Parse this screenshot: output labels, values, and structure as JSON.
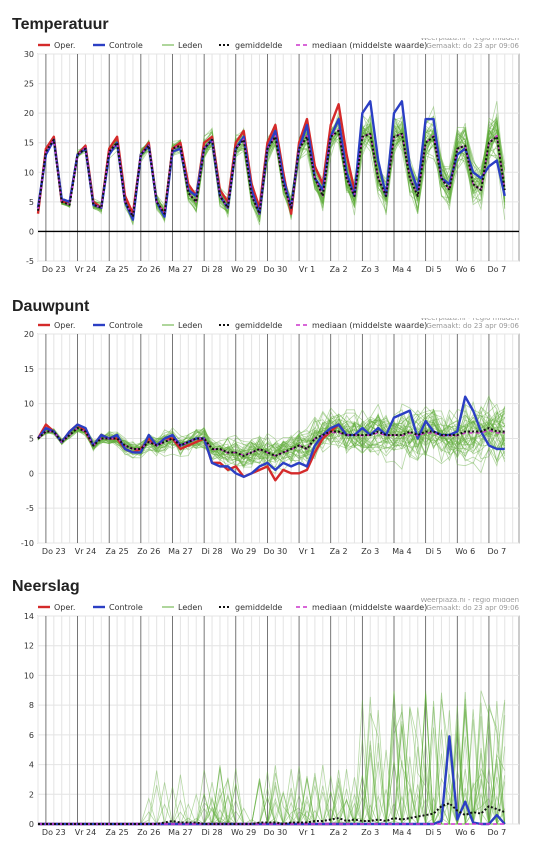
{
  "legend": {
    "oper": "Oper.",
    "controle": "Controle",
    "leden": "Leden",
    "gemiddelde": "gemiddelde",
    "mediaan": "mediaan (middelste waarde)"
  },
  "source": {
    "line1": "Weerplaza.nl - regio midden",
    "line2": "Gemaakt: do 23 apr 09:06"
  },
  "colors": {
    "oper": "#d42a2a",
    "controle": "#2b3fc4",
    "leden": "#5fae3a",
    "gemiddelde": "#111111",
    "mediaan": "#cc33cc"
  },
  "chart_data": [
    {
      "type": "line",
      "title": "Temperatuur",
      "ylim": [
        -5,
        30
      ],
      "yticks": [
        -5,
        0,
        5,
        10,
        15,
        20,
        25,
        30
      ],
      "zero_line": true,
      "day_labels": [
        "Do 23",
        "Vr 24",
        "Za 25",
        "Zo 26",
        "Ma 27",
        "Di 28",
        "Wo 29",
        "Do 30",
        "Vr 1",
        "Za 2",
        "Zo 3",
        "Ma 4",
        "Di 5",
        "Wo 6",
        "Do 7"
      ],
      "oper": [
        3,
        14,
        16,
        5,
        5,
        13,
        14.5,
        5,
        4,
        14,
        16,
        6,
        3,
        13,
        15,
        5,
        3,
        14,
        15,
        8,
        6,
        15,
        16,
        7,
        5,
        15,
        17,
        8,
        4,
        15,
        18,
        10,
        3,
        15,
        19,
        11,
        8,
        18,
        21.5,
        13,
        7
      ],
      "controle": [
        4,
        13,
        15.5,
        5.5,
        5,
        13,
        14,
        4.5,
        4,
        13,
        15,
        5,
        2,
        13,
        14.5,
        5,
        2.5,
        13.5,
        14,
        7,
        6,
        14,
        15.5,
        6,
        4,
        14,
        16,
        7,
        3,
        14,
        17,
        9,
        4,
        14,
        18,
        9,
        7,
        16,
        19,
        10,
        6,
        20,
        22,
        12,
        6,
        20,
        22,
        11,
        7,
        19,
        19,
        9,
        8,
        13,
        14,
        10,
        9,
        11,
        12,
        6
      ],
      "gemiddelde": [
        3.5,
        13.5,
        15.5,
        5,
        4.5,
        13,
        14,
        4.5,
        4,
        13.5,
        15,
        5,
        2.5,
        13,
        14.5,
        5,
        3,
        14,
        14.5,
        6.5,
        5,
        14,
        15.5,
        6,
        4,
        14,
        15.5,
        6,
        3,
        14,
        16,
        8,
        4,
        14,
        16,
        9,
        6,
        16,
        17,
        9,
        6,
        16,
        16.5,
        9,
        6,
        16,
        16.5,
        9,
        6,
        15,
        16,
        9,
        7,
        14,
        14.5,
        8,
        7,
        15,
        16,
        7
      ],
      "mediaan": [
        3.5,
        13.5,
        15.5,
        5,
        4.5,
        13,
        14.2,
        4.5,
        4,
        13.5,
        15,
        5,
        2.6,
        13,
        14.5,
        5,
        3,
        14,
        14.6,
        6.5,
        5,
        14,
        15.6,
        6,
        4,
        14,
        15.6,
        6.2,
        3,
        14,
        16.2,
        8,
        4,
        14,
        16.2,
        9,
        6,
        16,
        17.2,
        9,
        6,
        16,
        16.6,
        9,
        6,
        16,
        16.6,
        9.2,
        6,
        15,
        16.2,
        9,
        7,
        14,
        14.6,
        8,
        7,
        15,
        16.2,
        7
      ]
    },
    {
      "type": "line",
      "title": "Dauwpunt",
      "ylim": [
        -10,
        20
      ],
      "yticks": [
        -10,
        -5,
        0,
        5,
        10,
        15,
        20
      ],
      "zero_line": false,
      "day_labels": [
        "Do 23",
        "Vr 24",
        "Za 25",
        "Zo 26",
        "Ma 27",
        "Di 28",
        "Wo 29",
        "Do 30",
        "Vr 1",
        "Za 2",
        "Zo 3",
        "Ma 4",
        "Di 5",
        "Wo 6",
        "Do 7"
      ],
      "oper": [
        5,
        7,
        6,
        4.5,
        6,
        7,
        6,
        4,
        5.5,
        5,
        5,
        3.5,
        3,
        3.5,
        5,
        4,
        5,
        5,
        3.5,
        4,
        4.5,
        5,
        1.5,
        1.5,
        0.5,
        1,
        -0.5,
        0,
        0.5,
        1,
        -1,
        0.5,
        0,
        0,
        0.5,
        3,
        5,
        6,
        7,
        5.5
      ],
      "controle": [
        5,
        6.5,
        6,
        4.5,
        6,
        7,
        6.5,
        4,
        5.5,
        5,
        5.5,
        3.5,
        3,
        3,
        5.5,
        4,
        5,
        5.5,
        4,
        4.5,
        5,
        5,
        1.5,
        1,
        1,
        0,
        -0.5,
        0,
        1,
        1.5,
        0.5,
        1.5,
        1,
        1.5,
        1,
        4,
        5.5,
        6.5,
        7,
        5.5,
        5.5,
        6.5,
        5.5,
        6.5,
        5.5,
        8,
        8.5,
        9,
        5,
        7.5,
        6,
        5.5,
        5.5,
        6,
        11,
        9,
        6,
        4,
        3.5,
        3.5
      ],
      "gemiddelde": [
        5,
        6,
        6,
        4.5,
        5.5,
        6.5,
        6,
        4,
        5,
        5,
        5,
        4,
        3.5,
        3.5,
        4.5,
        4,
        4.5,
        5,
        4,
        4.5,
        5,
        5,
        3.5,
        3.5,
        3,
        3,
        2.5,
        3,
        3.5,
        3,
        2.5,
        3,
        3.5,
        4,
        3.5,
        5,
        5.5,
        6,
        6,
        5.5,
        5.5,
        5.5,
        5.5,
        6,
        5.5,
        5.5,
        5.5,
        6,
        5.5,
        6,
        6,
        5.5,
        5.5,
        5.5,
        6,
        6,
        6,
        6.5,
        6,
        6
      ],
      "mediaan": [
        5,
        6,
        6,
        4.5,
        5.5,
        6.5,
        6,
        4,
        5,
        5,
        5,
        4,
        3.5,
        3.5,
        4.5,
        4,
        4.5,
        5,
        4,
        4.5,
        5,
        5,
        3.4,
        3.5,
        2.9,
        3,
        2.6,
        3,
        3.4,
        3,
        2.5,
        3,
        3.4,
        4,
        3.5,
        5,
        5.4,
        5.9,
        5.8,
        5.5,
        5.5,
        5.4,
        5.5,
        5.8,
        5.4,
        5.5,
        5.4,
        5.8,
        5.4,
        5.8,
        5.8,
        5.4,
        5.4,
        5.4,
        5.8,
        5.8,
        5.8,
        6.2,
        5.8,
        5.8
      ]
    },
    {
      "type": "line",
      "title": "Neerslag",
      "ylim": [
        0,
        14
      ],
      "yticks": [
        0,
        2,
        4,
        6,
        8,
        10,
        12,
        14
      ],
      "zero_line": false,
      "day_labels": [
        "Do 23",
        "Vr 24",
        "Za 25",
        "Zo 26",
        "Ma 27",
        "Di 28",
        "Wo 29",
        "Do 30",
        "Vr 1",
        "Za 2",
        "Zo 3",
        "Ma 4",
        "Di 5",
        "Wo 6",
        "Do 7"
      ],
      "oper": [
        0,
        0,
        0,
        0,
        0,
        0,
        0,
        0,
        0,
        0,
        0,
        0,
        0,
        0,
        0,
        0,
        0,
        0,
        0,
        0,
        0,
        0,
        0,
        0,
        0,
        0,
        0,
        0,
        0,
        0,
        0,
        0,
        0,
        0,
        0,
        0,
        0,
        0,
        0,
        0
      ],
      "controle": [
        0,
        0,
        0,
        0,
        0,
        0,
        0,
        0,
        0,
        0,
        0,
        0,
        0,
        0,
        0,
        0,
        0,
        0,
        0,
        0,
        0,
        0,
        0,
        0,
        0,
        0,
        0,
        0,
        0,
        0,
        0,
        0,
        0,
        0,
        0,
        0,
        0,
        0,
        0,
        0,
        0,
        0,
        0,
        0,
        0,
        0,
        0,
        0,
        0,
        0,
        0,
        0.2,
        5.9,
        0.3,
        1.5,
        0.1,
        0,
        0,
        0.6,
        0
      ],
      "gemiddelde": [
        0,
        0,
        0,
        0,
        0,
        0,
        0,
        0,
        0,
        0,
        0,
        0,
        0,
        0,
        0,
        0,
        0.1,
        0.2,
        0.1,
        0.1,
        0.1,
        0,
        0,
        0,
        0,
        0,
        0,
        0,
        0.1,
        0.1,
        0.1,
        0,
        0.1,
        0.1,
        0.1,
        0.2,
        0.2,
        0.3,
        0.4,
        0.2,
        0.3,
        0.2,
        0.2,
        0.3,
        0.2,
        0.4,
        0.3,
        0.4,
        0.5,
        0.6,
        0.7,
        1.2,
        1.4,
        0.9,
        0.6,
        0.8,
        0.7,
        1.2,
        1.0,
        0.8
      ],
      "mediaan": [
        0,
        0,
        0,
        0,
        0,
        0,
        0,
        0,
        0,
        0,
        0,
        0,
        0,
        0,
        0,
        0,
        0,
        0,
        0,
        0,
        0,
        0,
        0,
        0,
        0,
        0,
        0,
        0,
        0,
        0,
        0,
        0,
        0,
        0,
        0,
        0,
        0,
        0,
        0,
        0,
        0,
        0,
        0,
        0,
        0,
        0,
        0,
        0,
        0,
        0,
        0,
        0,
        0,
        0,
        0,
        0,
        0,
        0,
        0,
        0
      ]
    }
  ]
}
